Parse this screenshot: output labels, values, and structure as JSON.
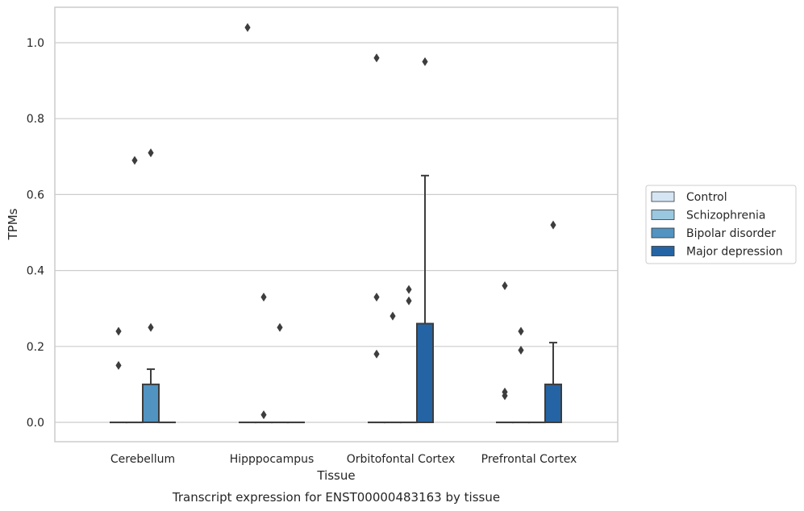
{
  "chart_data": {
    "type": "box",
    "title": "Transcript expression for ENST00000483163 by tissue",
    "xlabel": "Tissue",
    "ylabel": "TPMs",
    "ylim": [
      -0.05,
      1.09
    ],
    "yticks": [
      0.0,
      0.2,
      0.4,
      0.6,
      0.8,
      1.0
    ],
    "ytick_labels": [
      "0.0",
      "0.2",
      "0.4",
      "0.6",
      "0.8",
      "1.0"
    ],
    "grid": "horizontal",
    "legend_position": "right",
    "categories": [
      "Cerebellum",
      "Hipppocampus",
      "Orbitofontal Cortex",
      "Prefrontal Cortex"
    ],
    "series": [
      {
        "name": "Control",
        "color": "#d6e5f3",
        "boxes": [
          {
            "q1": 0,
            "median": 0,
            "q3": 0,
            "whislo": 0,
            "whishi": 0,
            "fliers": [
              0.15,
              0.24
            ]
          },
          {
            "q1": 0,
            "median": 0,
            "q3": 0,
            "whislo": 0,
            "whishi": 0,
            "fliers": [
              1.04
            ]
          },
          {
            "q1": 0,
            "median": 0,
            "q3": 0,
            "whislo": 0,
            "whishi": 0,
            "fliers": [
              0.18,
              0.33,
              0.96
            ]
          },
          {
            "q1": 0,
            "median": 0,
            "q3": 0,
            "whislo": 0,
            "whishi": 0,
            "fliers": [
              0.07,
              0.08,
              0.36
            ]
          }
        ]
      },
      {
        "name": "Schizophrenia",
        "color": "#9ac8e0",
        "boxes": [
          {
            "q1": 0,
            "median": 0,
            "q3": 0,
            "whislo": 0,
            "whishi": 0,
            "fliers": [
              0.69
            ]
          },
          {
            "q1": 0,
            "median": 0,
            "q3": 0,
            "whislo": 0,
            "whishi": 0,
            "fliers": [
              0.02,
              0.33
            ]
          },
          {
            "q1": 0,
            "median": 0,
            "q3": 0,
            "whislo": 0,
            "whishi": 0,
            "fliers": [
              0.28
            ]
          },
          {
            "q1": 0,
            "median": 0,
            "q3": 0,
            "whislo": 0,
            "whishi": 0,
            "fliers": [
              0.19,
              0.24
            ]
          }
        ]
      },
      {
        "name": "Bipolar disorder",
        "color": "#5193c1",
        "boxes": [
          {
            "q1": 0,
            "median": 0,
            "q3": 0.1,
            "whislo": 0,
            "whishi": 0.14,
            "fliers": [
              0.25,
              0.71
            ]
          },
          {
            "q1": 0,
            "median": 0,
            "q3": 0,
            "whislo": 0,
            "whishi": 0,
            "fliers": [
              0.25
            ]
          },
          {
            "q1": 0,
            "median": 0,
            "q3": 0,
            "whislo": 0,
            "whishi": 0,
            "fliers": [
              0.32,
              0.35
            ]
          },
          {
            "q1": 0,
            "median": 0,
            "q3": 0,
            "whislo": 0,
            "whishi": 0,
            "fliers": []
          }
        ]
      },
      {
        "name": "Major depression",
        "color": "#2464a4",
        "boxes": [
          {
            "q1": 0,
            "median": 0,
            "q3": 0,
            "whislo": 0,
            "whishi": 0,
            "fliers": []
          },
          {
            "q1": 0,
            "median": 0,
            "q3": 0,
            "whislo": 0,
            "whishi": 0,
            "fliers": []
          },
          {
            "q1": 0,
            "median": 0,
            "q3": 0.26,
            "whislo": 0,
            "whishi": 0.65,
            "fliers": [
              0.95
            ]
          },
          {
            "q1": 0,
            "median": 0,
            "q3": 0.1,
            "whislo": 0,
            "whishi": 0.21,
            "fliers": [
              0.52
            ]
          }
        ]
      }
    ]
  }
}
